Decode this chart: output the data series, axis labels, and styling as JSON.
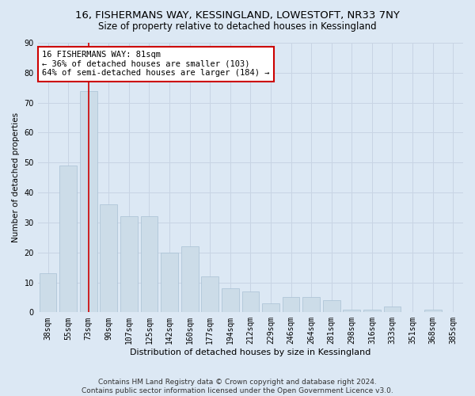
{
  "title1": "16, FISHERMANS WAY, KESSINGLAND, LOWESTOFT, NR33 7NY",
  "title2": "Size of property relative to detached houses in Kessingland",
  "xlabel": "Distribution of detached houses by size in Kessingland",
  "ylabel": "Number of detached properties",
  "categories": [
    "38sqm",
    "55sqm",
    "73sqm",
    "90sqm",
    "107sqm",
    "125sqm",
    "142sqm",
    "160sqm",
    "177sqm",
    "194sqm",
    "212sqm",
    "229sqm",
    "246sqm",
    "264sqm",
    "281sqm",
    "298sqm",
    "316sqm",
    "333sqm",
    "351sqm",
    "368sqm",
    "385sqm"
  ],
  "values": [
    13,
    49,
    74,
    36,
    32,
    32,
    20,
    22,
    12,
    8,
    7,
    3,
    5,
    5,
    4,
    1,
    1,
    2,
    0,
    1,
    0
  ],
  "bar_color": "#ccdce8",
  "bar_edge_color": "#a8c0d4",
  "highlight_bar_index": 2,
  "highlight_line_color": "#cc0000",
  "annotation_text": "16 FISHERMANS WAY: 81sqm\n← 36% of detached houses are smaller (103)\n64% of semi-detached houses are larger (184) →",
  "annotation_box_color": "#ffffff",
  "annotation_box_edge_color": "#cc0000",
  "ylim": [
    0,
    90
  ],
  "yticks": [
    0,
    10,
    20,
    30,
    40,
    50,
    60,
    70,
    80,
    90
  ],
  "grid_color": "#c8d4e4",
  "background_color": "#dce8f4",
  "footer_text": "Contains HM Land Registry data © Crown copyright and database right 2024.\nContains public sector information licensed under the Open Government Licence v3.0.",
  "title1_fontsize": 9.5,
  "title2_fontsize": 8.5,
  "xlabel_fontsize": 8,
  "ylabel_fontsize": 7.5,
  "tick_fontsize": 7,
  "annotation_fontsize": 7.5,
  "footer_fontsize": 6.5
}
